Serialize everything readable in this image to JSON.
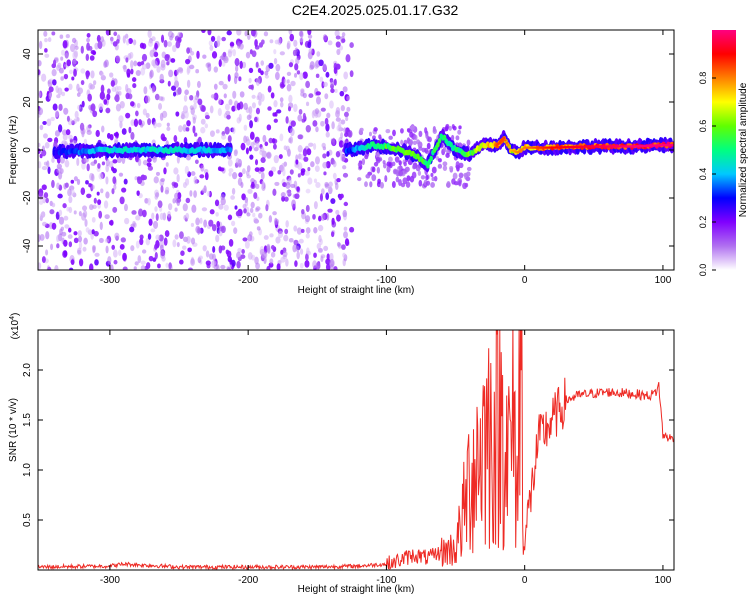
{
  "page": {
    "title": "C2E4.2025.025.01.17.G32"
  },
  "chart_data": [
    {
      "type": "heatmap",
      "xlabel": "Height of straight line (km)",
      "ylabel": "Frequency (Hz)",
      "xlim": [
        -352,
        108
      ],
      "ylim": [
        -50,
        50
      ],
      "x_ticks": [
        -300,
        -200,
        -100,
        0,
        100
      ],
      "y_ticks": [
        -40,
        -20,
        0,
        20,
        40
      ],
      "colorbar": {
        "label": "Normalized spectral amplitude",
        "range": [
          0,
          1
        ],
        "ticks": [
          0.0,
          0.2,
          0.4,
          0.6,
          0.8
        ],
        "colors": [
          "#ffffff",
          "#b070f0",
          "#8000ff",
          "#0000ff",
          "#00c8ff",
          "#00ff80",
          "#60ff00",
          "#ffff00",
          "#ff8000",
          "#ff0000",
          "#ff0080"
        ]
      },
      "band": {
        "description_x": [
          -340,
          -300,
          -250,
          -215,
          -125,
          -110,
          -95,
          -80,
          -70,
          -60,
          -50,
          -40,
          -30,
          -20,
          -15,
          -10,
          -5,
          0,
          20,
          50,
          80,
          100,
          108
        ],
        "center_hz": [
          -1,
          0,
          0,
          0,
          0,
          2,
          1,
          -2,
          -6,
          6,
          0,
          -2,
          2,
          2,
          5,
          0,
          -1,
          1,
          1,
          1.5,
          1.5,
          2,
          2
        ],
        "intensity": [
          0.3,
          0.45,
          0.45,
          0.4,
          0.35,
          0.55,
          0.6,
          0.6,
          0.55,
          0.55,
          0.5,
          0.6,
          0.75,
          0.8,
          0.8,
          0.7,
          0.75,
          0.75,
          0.85,
          0.9,
          0.95,
          0.95,
          0.95
        ]
      },
      "noise_region_x": [
        -352,
        -125
      ]
    },
    {
      "type": "line",
      "xlabel": "Height of straight line (km)",
      "ylabel": "SNR (10 * v/v)",
      "y_scale_label": "(x10",
      "y_scale_exp": "4",
      "xlim": [
        -352,
        108
      ],
      "ylim": [
        0,
        2.4
      ],
      "x_ticks": [
        -300,
        -200,
        -100,
        0,
        100
      ],
      "y_ticks": [
        0.5,
        1.0,
        1.5,
        2.0
      ],
      "color": "#ee2a24",
      "series": [
        {
          "x": [
            -352,
            -300,
            -290,
            -250,
            -200,
            -150,
            -120,
            -100,
            -90,
            -80,
            -70,
            -60,
            -50,
            -45,
            -40,
            -35,
            -30,
            -25,
            -20,
            -15,
            -12,
            -8,
            -5,
            -3,
            0,
            5,
            10,
            20,
            30,
            40,
            60,
            80,
            90,
            95,
            97,
            100,
            105,
            108
          ],
          "values": [
            0.03,
            0.04,
            0.06,
            0.03,
            0.03,
            0.03,
            0.04,
            0.06,
            0.1,
            0.15,
            0.12,
            0.18,
            0.22,
            0.5,
            0.9,
            1.1,
            1.3,
            1.4,
            1.35,
            1.6,
            1.1,
            1.4,
            0.8,
            2.3,
            0.3,
            0.8,
            1.3,
            1.5,
            1.7,
            1.75,
            1.78,
            1.76,
            1.74,
            1.78,
            1.85,
            1.35,
            1.32,
            1.3
          ]
        }
      ]
    }
  ]
}
